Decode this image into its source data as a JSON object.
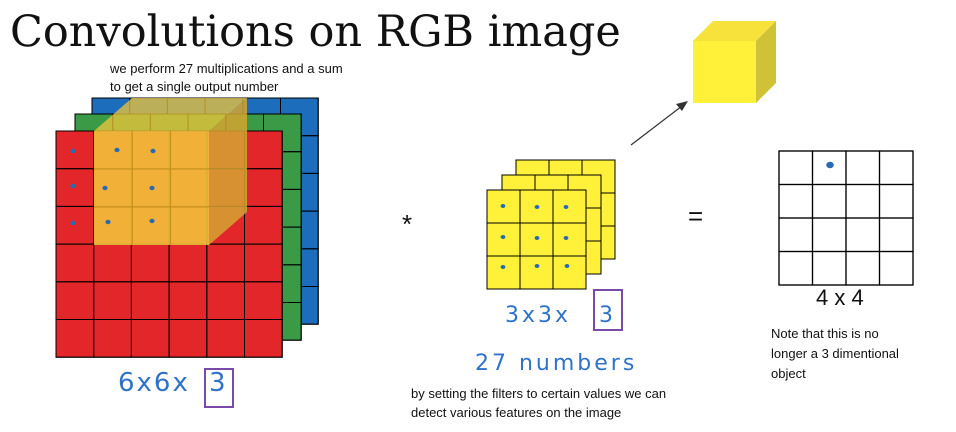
{
  "title": "Convolutions on RGB image",
  "notes": {
    "top_line1": "we perform 27 multiplications and a sum",
    "top_line2": "to get a single output number",
    "bottom_line1": "by setting the filters to certain values we can",
    "bottom_line2": "detect various features on the image",
    "right_line1": "Note that this is no",
    "right_line2": "longer a 3 dimentional",
    "right_line3": "object"
  },
  "input": {
    "rows": 6,
    "cols": 6,
    "channels": 3,
    "label_main": "6x6x",
    "label_boxed": "3",
    "channel_colors": [
      "#e3262a",
      "#3b9a45",
      "#1c6dbb"
    ],
    "overlay_color": "#f2c53a"
  },
  "filter": {
    "rows": 3,
    "cols": 3,
    "channels": 3,
    "label_main": "3x3x",
    "label_boxed": "3",
    "color": "#fff03a",
    "param_note": "27 numbers"
  },
  "operators": {
    "convolve": "*",
    "equals": "="
  },
  "output": {
    "rows": 4,
    "cols": 4,
    "label": "4 x 4"
  },
  "output_cube_color": "#fff03a",
  "dot_color": "#2a6ab5"
}
